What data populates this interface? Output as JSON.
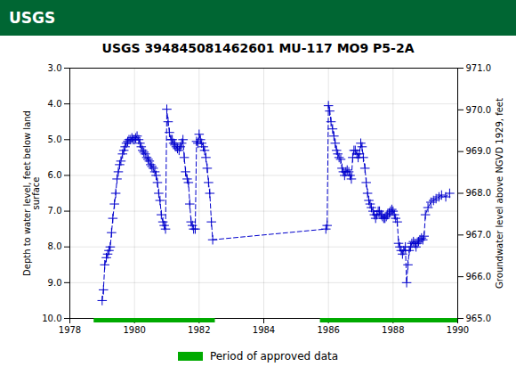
{
  "chart_data": {
    "type": "line",
    "title": "USGS 394845081462601 MU-117 MO9 P5-2A",
    "annotations": [
      {
        "text": "USGS"
      }
    ],
    "ylabel": "Depth to water level, feet below land\nsurface",
    "y2label": "Groundwater level above NGVD 1929, feet",
    "xlim": [
      1978,
      1990
    ],
    "xticks": [
      1978,
      1980,
      1982,
      1984,
      1986,
      1988,
      1990
    ],
    "ylim": [
      10.0,
      3.0
    ],
    "yticks": [
      {
        "value": 3.0,
        "label": "3.0"
      },
      {
        "value": 4.0,
        "label": "4.0"
      },
      {
        "value": 5.0,
        "label": "5.0"
      },
      {
        "value": 6.0,
        "label": "6.0"
      },
      {
        "value": 7.0,
        "label": "7.0"
      },
      {
        "value": 8.0,
        "label": "8.0"
      },
      {
        "value": 9.0,
        "label": "9.0"
      },
      {
        "value": 10.0,
        "label": "10.0"
      }
    ],
    "y2lim": [
      965.0,
      971.0
    ],
    "y2ticks": [
      {
        "value": 965.0,
        "label": "965.0"
      },
      {
        "value": 966.0,
        "label": "966.0"
      },
      {
        "value": 967.0,
        "label": "967.0"
      },
      {
        "value": 968.0,
        "label": "968.0"
      },
      {
        "value": 969.0,
        "label": "969.0"
      },
      {
        "value": 970.0,
        "label": "970.0"
      },
      {
        "value": 971.0,
        "label": "971.0"
      }
    ],
    "grid": true,
    "legend": "bottom",
    "approved_periods": {
      "name": "Period of approved data",
      "color": "#00AA00",
      "ranges": [
        [
          1978.75,
          1982.5
        ],
        [
          1985.75,
          1990.0
        ]
      ]
    },
    "x": [
      1979.0,
      1979.04,
      1979.08,
      1979.13,
      1979.17,
      1979.21,
      1979.25,
      1979.29,
      1979.33,
      1979.38,
      1979.42,
      1979.46,
      1979.5,
      1979.54,
      1979.58,
      1979.63,
      1979.67,
      1979.71,
      1979.75,
      1979.79,
      1979.83,
      1979.88,
      1979.92,
      1979.96,
      1980.0,
      1980.04,
      1980.08,
      1980.13,
      1980.17,
      1980.21,
      1980.25,
      1980.29,
      1980.33,
      1980.38,
      1980.42,
      1980.46,
      1980.5,
      1980.54,
      1980.58,
      1980.63,
      1980.67,
      1980.71,
      1980.75,
      1980.79,
      1980.83,
      1980.88,
      1980.92,
      1980.96,
      1981.0,
      1981.04,
      1981.08,
      1981.13,
      1981.17,
      1981.21,
      1981.25,
      1981.29,
      1981.33,
      1981.38,
      1981.42,
      1981.46,
      1981.5,
      1981.54,
      1981.58,
      1981.63,
      1981.67,
      1981.71,
      1981.75,
      1981.79,
      1981.83,
      1981.88,
      1981.92,
      1981.96,
      1982.0,
      1982.04,
      1982.08,
      1982.13,
      1982.17,
      1982.21,
      1982.25,
      1982.29,
      1982.33,
      1982.38,
      1982.42,
      1985.92,
      1985.96,
      1986.0,
      1986.04,
      1986.08,
      1986.13,
      1986.17,
      1986.21,
      1986.25,
      1986.29,
      1986.33,
      1986.38,
      1986.42,
      1986.46,
      1986.5,
      1986.54,
      1986.58,
      1986.63,
      1986.67,
      1986.71,
      1986.75,
      1986.79,
      1986.83,
      1986.88,
      1986.92,
      1986.96,
      1987.0,
      1987.04,
      1987.08,
      1987.13,
      1987.17,
      1987.21,
      1987.25,
      1987.29,
      1987.33,
      1987.38,
      1987.42,
      1987.46,
      1987.5,
      1987.54,
      1987.58,
      1987.63,
      1987.67,
      1987.71,
      1987.75,
      1987.79,
      1987.83,
      1987.88,
      1987.92,
      1987.96,
      1988.0,
      1988.04,
      1988.08,
      1988.13,
      1988.17,
      1988.21,
      1988.25,
      1988.29,
      1988.33,
      1988.38,
      1988.42,
      1988.46,
      1988.5,
      1988.54,
      1988.58,
      1988.63,
      1988.67,
      1988.71,
      1988.75,
      1988.79,
      1988.83,
      1988.88,
      1988.92,
      1988.96,
      1989.0,
      1989.08,
      1989.17,
      1989.25,
      1989.33,
      1989.42,
      1989.5,
      1989.63,
      1989.75
    ],
    "series": [
      {
        "color": "#0000CC",
        "marker": "+",
        "line_style": "dashed",
        "values": [
          9.5,
          9.2,
          8.5,
          8.3,
          8.2,
          8.1,
          8.0,
          7.6,
          7.2,
          6.8,
          6.5,
          6.1,
          5.9,
          5.7,
          5.6,
          5.4,
          5.3,
          5.2,
          5.1,
          5.05,
          5.0,
          5.0,
          4.95,
          5.0,
          5.0,
          4.95,
          4.9,
          5.0,
          5.1,
          5.2,
          5.3,
          5.35,
          5.4,
          5.5,
          5.55,
          5.6,
          5.7,
          5.75,
          5.8,
          5.9,
          6.0,
          6.2,
          6.5,
          6.7,
          7.1,
          7.3,
          7.4,
          7.5,
          4.15,
          4.5,
          4.8,
          5.0,
          5.0,
          5.1,
          5.15,
          5.2,
          5.25,
          5.3,
          5.2,
          5.1,
          5.0,
          5.5,
          5.9,
          6.1,
          6.2,
          6.8,
          7.3,
          7.4,
          7.5,
          7.5,
          5.05,
          5.1,
          4.85,
          5.0,
          5.1,
          5.2,
          5.3,
          5.5,
          5.8,
          6.2,
          6.5,
          7.3,
          7.8,
          7.5,
          7.4,
          4.05,
          4.2,
          4.5,
          4.7,
          4.9,
          5.1,
          5.3,
          5.4,
          5.5,
          5.55,
          5.8,
          5.9,
          6.0,
          5.9,
          5.85,
          5.9,
          6.0,
          6.1,
          5.5,
          5.3,
          5.3,
          5.4,
          5.5,
          5.4,
          5.1,
          5.2,
          5.5,
          5.8,
          6.2,
          6.5,
          6.7,
          6.8,
          6.9,
          7.0,
          7.1,
          7.2,
          7.1,
          7.0,
          7.0,
          7.1,
          7.15,
          7.2,
          7.2,
          7.15,
          7.1,
          7.05,
          7.0,
          6.95,
          7.0,
          7.1,
          7.2,
          7.3,
          7.9,
          8.0,
          8.1,
          8.2,
          8.1,
          8.0,
          9.0,
          8.5,
          8.1,
          8.0,
          7.9,
          7.85,
          7.9,
          8.0,
          7.9,
          7.85,
          7.8,
          7.75,
          7.8,
          7.7,
          7.1,
          6.9,
          6.75,
          6.7,
          6.65,
          6.6,
          6.55,
          6.6,
          6.5
        ]
      }
    ]
  }
}
